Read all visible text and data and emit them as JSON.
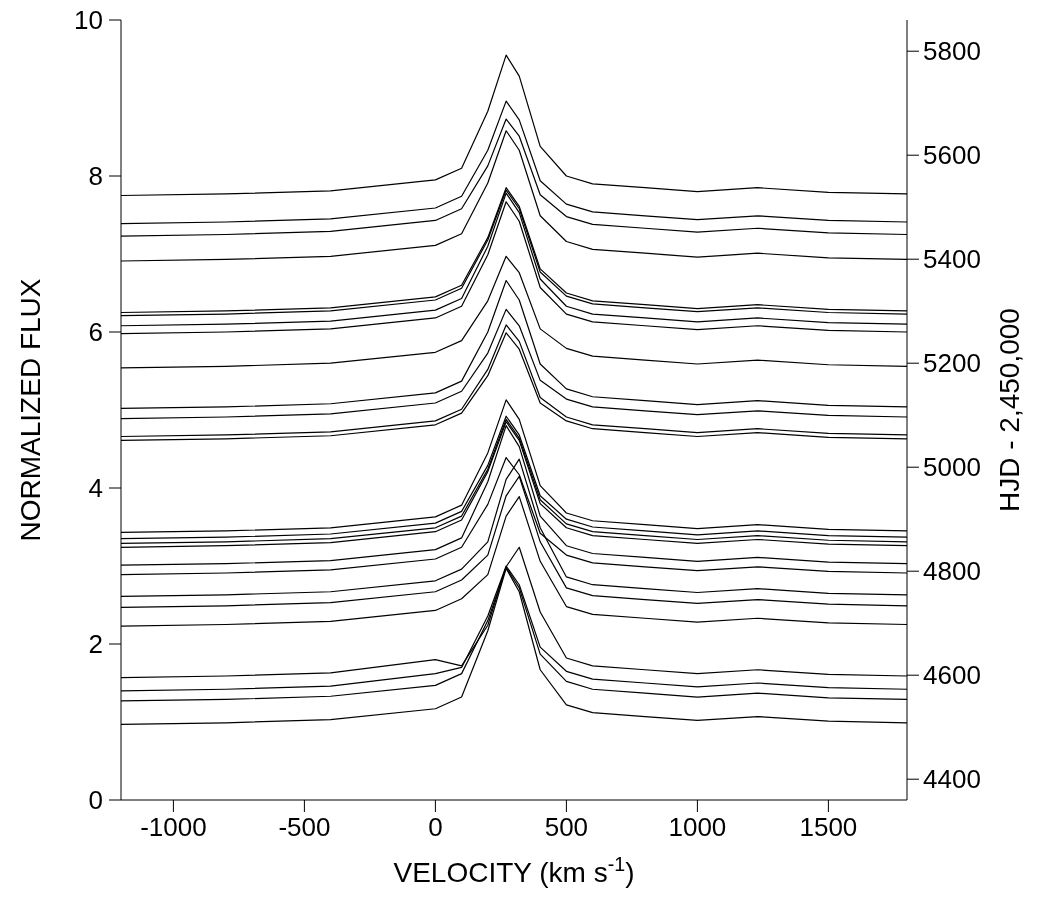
{
  "chart_data": {
    "type": "line",
    "xlabel": "VELOCITY (km s$^{-1}$)",
    "ylabel": "NORMALIZED FLUX",
    "y2label": "HJD - 2,450,000",
    "x": [
      -1200,
      -800,
      -400,
      0,
      100,
      200,
      270,
      320,
      400,
      500,
      600,
      800,
      1000,
      1230,
      1500,
      1800
    ],
    "xlim": [
      -1200,
      1800
    ],
    "xticks": [
      -1000,
      -500,
      0,
      500,
      1000,
      1500
    ],
    "ylim": [
      0,
      10
    ],
    "yticks": [
      0,
      2,
      4,
      6,
      8,
      10
    ],
    "y2lim": [
      4360,
      5860
    ],
    "y2ticks": [
      4400,
      4600,
      4800,
      5000,
      5200,
      5400,
      5600,
      5800
    ],
    "grid": false,
    "legend": false,
    "marker": "none",
    "line_style": "solid",
    "series": [
      {
        "color": "#000000",
        "values": [
          7.75,
          7.77,
          7.81,
          7.95,
          8.1,
          8.83,
          9.55,
          9.28,
          8.38,
          8.0,
          7.9,
          7.85,
          7.8,
          7.85,
          7.79,
          7.77
        ]
      },
      {
        "color": "#000000",
        "values": [
          7.39,
          7.41,
          7.45,
          7.59,
          7.74,
          8.33,
          8.96,
          8.72,
          7.94,
          7.64,
          7.54,
          7.49,
          7.44,
          7.49,
          7.43,
          7.41
        ]
      },
      {
        "color": "#000000",
        "values": [
          7.23,
          7.25,
          7.29,
          7.43,
          7.58,
          8.13,
          8.73,
          8.51,
          7.76,
          7.48,
          7.38,
          7.33,
          7.28,
          7.33,
          7.27,
          7.25
        ]
      },
      {
        "color": "#000000",
        "values": [
          6.91,
          6.93,
          6.97,
          7.11,
          7.26,
          7.91,
          8.58,
          8.33,
          7.49,
          7.16,
          7.06,
          7.01,
          6.96,
          7.01,
          6.95,
          6.93
        ]
      },
      {
        "color": "#000000",
        "values": [
          6.25,
          6.27,
          6.31,
          6.45,
          6.6,
          7.21,
          7.85,
          7.61,
          6.81,
          6.5,
          6.4,
          6.35,
          6.3,
          6.35,
          6.29,
          6.27
        ]
      },
      {
        "color": "#000000",
        "values": [
          6.21,
          6.23,
          6.27,
          6.41,
          6.56,
          7.18,
          7.82,
          7.58,
          6.77,
          6.46,
          6.36,
          6.31,
          6.26,
          6.31,
          6.25,
          6.23
        ]
      },
      {
        "color": "#000000",
        "values": [
          6.08,
          6.1,
          6.14,
          6.28,
          6.43,
          7.1,
          7.78,
          7.53,
          6.68,
          6.33,
          6.23,
          6.18,
          6.13,
          6.18,
          6.12,
          6.1
        ]
      },
      {
        "color": "#000000",
        "values": [
          5.98,
          6.0,
          6.04,
          6.18,
          6.33,
          6.99,
          7.67,
          7.42,
          6.57,
          6.23,
          6.13,
          6.08,
          6.03,
          6.08,
          6.02,
          6.0
        ]
      },
      {
        "color": "#000000",
        "values": [
          5.54,
          5.56,
          5.6,
          5.74,
          5.89,
          6.4,
          6.97,
          6.76,
          6.04,
          5.79,
          5.69,
          5.64,
          5.59,
          5.64,
          5.58,
          5.56
        ]
      },
      {
        "color": "#000000",
        "values": [
          5.02,
          5.04,
          5.08,
          5.22,
          5.37,
          6.0,
          6.66,
          6.41,
          5.59,
          5.27,
          5.17,
          5.12,
          5.07,
          5.12,
          5.06,
          5.04
        ]
      },
      {
        "color": "#000000",
        "values": [
          4.89,
          4.91,
          4.95,
          5.09,
          5.24,
          5.73,
          6.29,
          6.08,
          5.38,
          5.14,
          5.04,
          4.99,
          4.94,
          4.99,
          4.93,
          4.91
        ]
      },
      {
        "color": "#000000",
        "values": [
          4.66,
          4.68,
          4.72,
          4.86,
          5.01,
          5.52,
          6.09,
          5.88,
          5.16,
          4.91,
          4.81,
          4.76,
          4.71,
          4.76,
          4.7,
          4.68
        ]
      },
      {
        "color": "#000000",
        "values": [
          4.61,
          4.63,
          4.67,
          4.81,
          4.96,
          5.44,
          5.99,
          5.78,
          5.09,
          4.86,
          4.76,
          4.71,
          4.66,
          4.71,
          4.65,
          4.63
        ]
      },
      {
        "color": "#000000",
        "values": [
          3.43,
          3.45,
          3.49,
          3.63,
          3.78,
          4.45,
          5.13,
          4.88,
          4.03,
          3.68,
          3.58,
          3.53,
          3.48,
          3.53,
          3.47,
          3.45
        ]
      },
      {
        "color": "#000000",
        "values": [
          3.35,
          3.37,
          3.41,
          3.55,
          3.7,
          4.29,
          4.92,
          4.68,
          3.9,
          3.6,
          3.5,
          3.45,
          3.4,
          3.45,
          3.39,
          3.37
        ]
      },
      {
        "color": "#000000",
        "values": [
          3.29,
          3.31,
          3.35,
          3.49,
          3.64,
          4.24,
          4.88,
          4.64,
          3.85,
          3.54,
          3.44,
          3.39,
          3.34,
          3.39,
          3.33,
          3.31
        ]
      },
      {
        "color": "#000000",
        "values": [
          3.24,
          3.26,
          3.3,
          3.44,
          3.59,
          4.21,
          4.85,
          4.61,
          3.8,
          3.49,
          3.39,
          3.34,
          3.29,
          3.34,
          3.28,
          3.26
        ]
      },
      {
        "color": "#000000",
        "values": [
          3.01,
          3.03,
          3.07,
          3.21,
          3.36,
          4.08,
          4.8,
          4.53,
          3.64,
          3.26,
          3.16,
          3.11,
          3.06,
          3.11,
          3.05,
          3.03
        ]
      },
      {
        "color": "#000000",
        "values": [
          2.89,
          2.91,
          2.95,
          3.09,
          3.24,
          3.79,
          4.39,
          4.17,
          3.42,
          3.14,
          3.04,
          2.99,
          2.94,
          2.99,
          2.93,
          2.91
        ]
      },
      {
        "color": "#000000",
        "values": [
          2.61,
          2.63,
          2.67,
          2.81,
          2.96,
          3.31,
          4.11,
          4.37,
          3.49,
          2.86,
          2.76,
          2.71,
          2.66,
          2.71,
          2.65,
          2.63
        ]
      },
      {
        "color": "#000000",
        "values": [
          2.47,
          2.49,
          2.53,
          2.67,
          2.82,
          3.14,
          3.9,
          4.15,
          3.31,
          2.72,
          2.62,
          2.57,
          2.52,
          2.57,
          2.51,
          2.49
        ]
      },
      {
        "color": "#000000",
        "values": [
          2.23,
          2.25,
          2.29,
          2.43,
          2.58,
          2.89,
          3.64,
          3.89,
          3.06,
          2.48,
          2.38,
          2.33,
          2.28,
          2.33,
          2.27,
          2.25
        ]
      },
      {
        "color": "#000000",
        "values": [
          1.57,
          1.59,
          1.63,
          1.8,
          1.72,
          2.24,
          2.99,
          3.24,
          2.41,
          1.82,
          1.72,
          1.67,
          1.62,
          1.67,
          1.61,
          1.59
        ]
      },
      {
        "color": "#000000",
        "values": [
          1.4,
          1.42,
          1.46,
          1.62,
          1.7,
          2.36,
          3.0,
          2.76,
          1.96,
          1.65,
          1.55,
          1.5,
          1.45,
          1.5,
          1.44,
          1.42
        ]
      },
      {
        "color": "#000000",
        "values": [
          1.27,
          1.29,
          1.33,
          1.47,
          1.62,
          2.3,
          2.98,
          2.72,
          1.87,
          1.52,
          1.42,
          1.37,
          1.32,
          1.37,
          1.31,
          1.29
        ]
      },
      {
        "color": "#000000",
        "values": [
          0.97,
          0.99,
          1.03,
          1.17,
          1.32,
          2.17,
          2.97,
          2.67,
          1.67,
          1.22,
          1.12,
          1.07,
          1.02,
          1.07,
          1.01,
          0.99
        ]
      }
    ]
  }
}
